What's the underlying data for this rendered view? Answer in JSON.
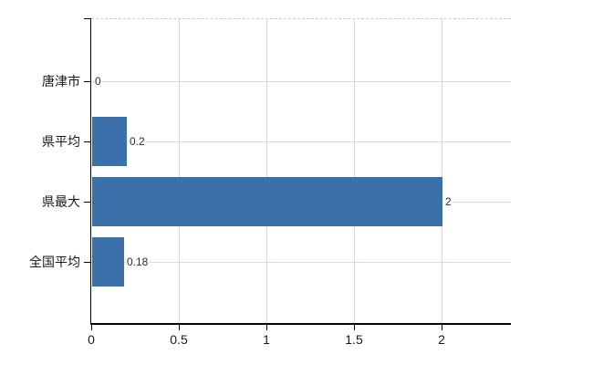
{
  "chart_data": {
    "type": "bar",
    "orientation": "horizontal",
    "title": "",
    "xlabel": "",
    "ylabel": "",
    "categories": [
      "唐津市",
      "県平均",
      "県最大",
      "全国平均"
    ],
    "values": [
      0,
      0.2,
      2,
      0.18
    ],
    "value_labels": [
      "0",
      "0.2",
      "2",
      "0.18"
    ],
    "x_ticks": [
      0,
      0.5,
      1,
      1.5,
      2
    ],
    "x_tick_labels": [
      "0",
      "0.5",
      "1",
      "1.5",
      "2"
    ],
    "xlim": [
      0,
      2.4
    ],
    "grid": true,
    "legend": false,
    "colors": {
      "bar": "#3c70aa",
      "axis": "#000000",
      "gridline_horizontal": "#d7ded7",
      "gridline_vertical": "#dadada",
      "plot_top_border": "#c6ccc6",
      "text": "#1a1a1a",
      "value_text": "#2e2e2e",
      "background": "#ffffff"
    }
  }
}
